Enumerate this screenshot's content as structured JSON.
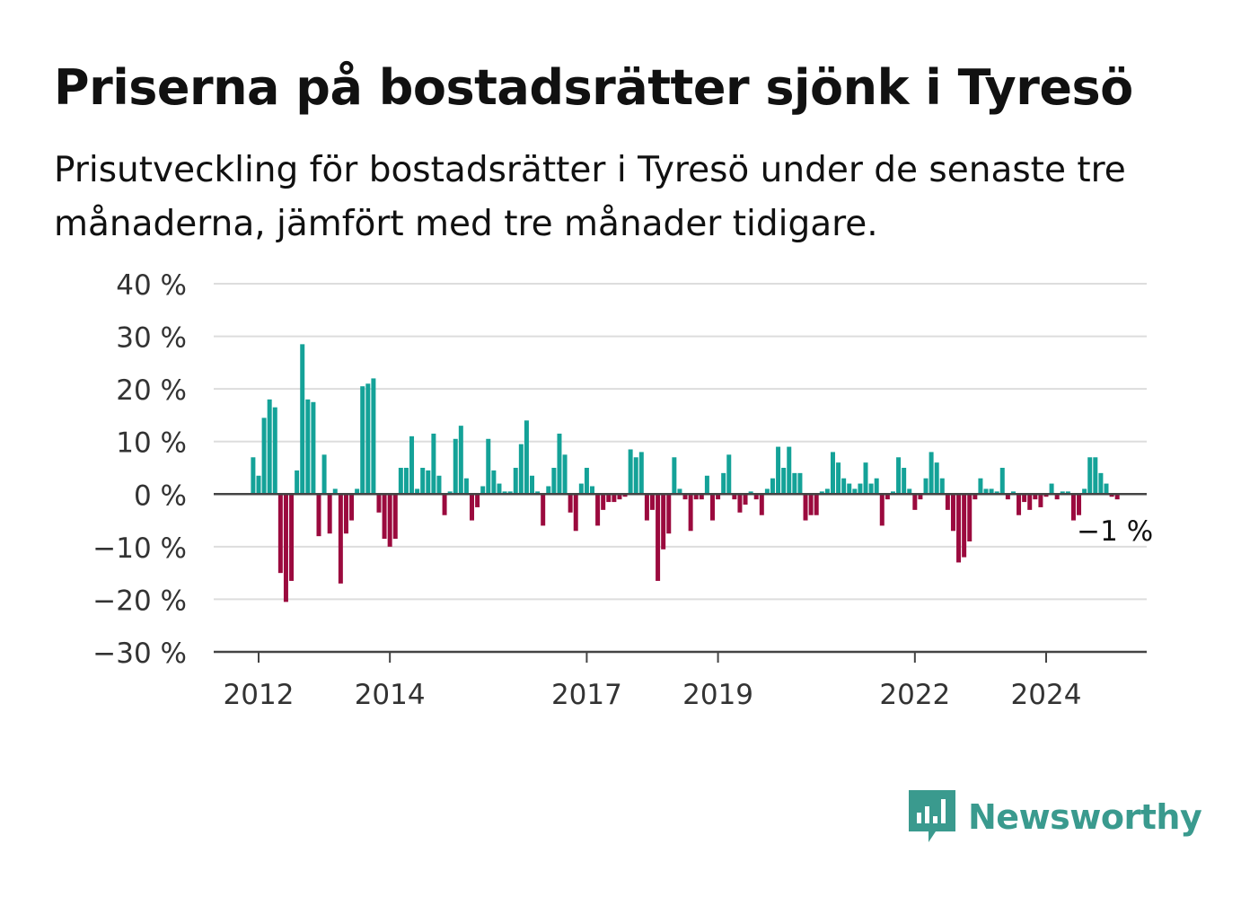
{
  "title": "Priserna på bostadsrätter sjönk i Tyresö",
  "subtitle": "Prisutveckling för bostadsrätter i Tyresö under de senaste tre månaderna, jämfört med tre månader tidigare.",
  "brand": "Newsworthy",
  "colors": {
    "positive": "#14a298",
    "negative": "#9b0a3e",
    "grid": "#dddddd",
    "axis": "#444444",
    "brand": "#3a9a8e"
  },
  "chart_data": {
    "type": "bar",
    "title": "Priserna på bostadsrätter sjönk i Tyresö",
    "ylabel": "",
    "xlabel": "",
    "ylim": [
      -30,
      40
    ],
    "grid": true,
    "y_ticks": [
      "40 %",
      "30 %",
      "20 %",
      "10 %",
      "0 %",
      "−10 %",
      "−20 %",
      "−30 %"
    ],
    "y_tick_values": [
      40,
      30,
      20,
      10,
      0,
      -10,
      -20,
      -30
    ],
    "x_ticks": [
      "2012",
      "2014",
      "2017",
      "2019",
      "2022",
      "2024"
    ],
    "x_tick_values": [
      2012.0,
      2014.0,
      2017.0,
      2019.0,
      2022.0,
      2024.0
    ],
    "start": "2011-12",
    "annotation": {
      "text": "−1 %",
      "value": -1
    },
    "values": [
      7,
      3.5,
      14.5,
      18,
      16.5,
      -15,
      -20.5,
      -16.5,
      4.5,
      28.5,
      18,
      17.5,
      -8,
      7.5,
      -7.5,
      1,
      -17,
      -7.5,
      -5,
      1,
      20.5,
      21,
      22,
      -3.5,
      -8.5,
      -10,
      -8.5,
      5,
      5,
      11,
      1,
      5,
      4.5,
      11.5,
      3.5,
      -4,
      0.5,
      10.5,
      13,
      3,
      -5,
      -2.5,
      1.5,
      10.5,
      4.5,
      2,
      0.5,
      0.5,
      5,
      9.5,
      14,
      3.5,
      0.5,
      -6,
      1.5,
      5,
      11.5,
      7.5,
      -3.5,
      -7,
      2,
      5,
      1.5,
      -6,
      -3,
      -1.5,
      -1.5,
      -1,
      -0.5,
      8.5,
      7,
      8,
      -5,
      -3,
      -16.5,
      -10.5,
      -7.5,
      7,
      1,
      -1,
      -7,
      -1,
      -1,
      3.5,
      -5,
      -1,
      4,
      7.5,
      -1,
      -3.5,
      -2,
      0.5,
      -1,
      -4,
      1,
      3,
      9,
      5,
      9,
      4,
      4,
      -5,
      -4,
      -4,
      0.5,
      1,
      8,
      6,
      3,
      2,
      1,
      2,
      6,
      2,
      3,
      -6,
      -1,
      0.5,
      7,
      5,
      1,
      -3,
      -1,
      3,
      8,
      6,
      3,
      -3,
      -7,
      -13,
      -12,
      -9,
      -1,
      3,
      1,
      1,
      0.5,
      5,
      -1,
      0.5,
      -4,
      -1.5,
      -3,
      -1,
      -2.5,
      -0.5,
      2,
      -1,
      0.5,
      0.5,
      -5,
      -4,
      1,
      7,
      7,
      4,
      2,
      -0.5,
      -1
    ]
  }
}
